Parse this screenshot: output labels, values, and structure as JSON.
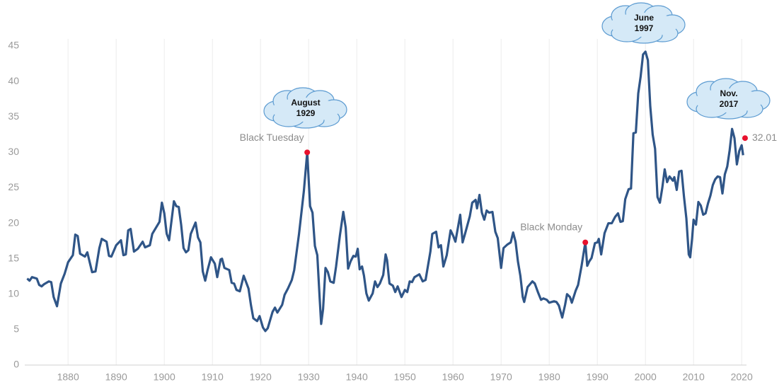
{
  "chart_data": {
    "type": "line",
    "color": "#2f5587",
    "x": [
      1871.5,
      1872,
      1872.5,
      1873.5,
      1874,
      1874.5,
      1875,
      1876,
      1876.5,
      1877,
      1877.7,
      1878.5,
      1879.3,
      1880,
      1881,
      1881.5,
      1882,
      1882.5,
      1883.5,
      1884,
      1885,
      1885.7,
      1886.5,
      1887,
      1888,
      1888.5,
      1889,
      1890,
      1891,
      1891.5,
      1892,
      1892.5,
      1893,
      1893.7,
      1894.5,
      1895.5,
      1896,
      1897,
      1897.5,
      1899,
      1899.5,
      1900,
      1900.5,
      1901,
      1902,
      1902.5,
      1903,
      1903.5,
      1904,
      1904.5,
      1905,
      1905.5,
      1906.5,
      1907,
      1907.5,
      1908,
      1908.5,
      1909,
      1909.7,
      1910.5,
      1911,
      1911.7,
      1912,
      1912.5,
      1913.5,
      1914,
      1914.5,
      1915,
      1915.7,
      1916.5,
      1917.5,
      1918,
      1918.5,
      1919.3,
      1919.8,
      1920.5,
      1921,
      1921.5,
      1922.5,
      1923,
      1923.5,
      1924.5,
      1925,
      1925.7,
      1926.5,
      1927,
      1928,
      1929,
      1929.7,
      1930.3,
      1930.8,
      1931.3,
      1931.8,
      1932.3,
      1932.6,
      1933,
      1933.5,
      1934,
      1934.5,
      1935.2,
      1935.7,
      1936.5,
      1937.2,
      1937.7,
      1938.2,
      1938.7,
      1939.3,
      1939.8,
      1940.2,
      1940.6,
      1941.1,
      1941.5,
      1942,
      1942.5,
      1943.3,
      1943.8,
      1944.3,
      1944.8,
      1945.5,
      1946,
      1946.3,
      1946.8,
      1947.5,
      1948,
      1948.5,
      1949.3,
      1950,
      1950.5,
      1951,
      1951.5,
      1952,
      1953,
      1953.7,
      1954.3,
      1955.3,
      1955.7,
      1956.5,
      1957,
      1957.5,
      1958,
      1958.7,
      1959.5,
      1960,
      1960.5,
      1961.5,
      1962,
      1962.5,
      1963.5,
      1964,
      1964.7,
      1965,
      1965.5,
      1966,
      1966.5,
      1967,
      1967.5,
      1968.2,
      1968.8,
      1969.3,
      1970,
      1970.5,
      1971.3,
      1972,
      1972.5,
      1973,
      1973.5,
      1974,
      1974.5,
      1974.8,
      1975.5,
      1976,
      1976.5,
      1977,
      1977.7,
      1978.3,
      1978.8,
      1979.5,
      1980,
      1981,
      1981.5,
      1982,
      1982.7,
      1983.3,
      1983.7,
      1984.3,
      1984.7,
      1985.5,
      1986,
      1986.7,
      1987.5,
      1987.9,
      1988.3,
      1988.8,
      1989.5,
      1990,
      1990.3,
      1990.8,
      1991.5,
      1992.3,
      1993,
      1993.7,
      1994.3,
      1994.8,
      1995.3,
      1995.8,
      1996.5,
      1997,
      1997.5,
      1998,
      1998.5,
      1999,
      1999.5,
      2000,
      2000.5,
      2001,
      2001.5,
      2002,
      2002.5,
      2003,
      2003.5,
      2004,
      2004.5,
      2005,
      2005.7,
      2006,
      2006.5,
      2007,
      2007.5,
      2008,
      2008.5,
      2009,
      2009.3,
      2009.7,
      2010,
      2010.5,
      2011,
      2011.5,
      2012,
      2012.5,
      2013,
      2013.5,
      2014,
      2014.5,
      2015,
      2015.5,
      2016,
      2016.5,
      2017,
      2017.5,
      2018,
      2018.5,
      2019,
      2019.5,
      2020,
      2020.3
    ],
    "values": [
      12.2,
      11.9,
      12.4,
      12.2,
      11.3,
      11.1,
      11.4,
      11.8,
      11.7,
      9.6,
      8.3,
      11.5,
      12.9,
      14.5,
      15.5,
      18.4,
      18.2,
      15.7,
      15.3,
      15.9,
      13.1,
      13.2,
      16.5,
      17.8,
      17.4,
      15.4,
      15.3,
      16.9,
      17.6,
      15.5,
      15.6,
      19.0,
      19.2,
      16.0,
      16.4,
      17.4,
      16.6,
      16.9,
      18.5,
      20.2,
      22.9,
      21.4,
      18.5,
      17.6,
      23.1,
      22.4,
      22.3,
      19.8,
      16.5,
      15.9,
      16.2,
      18.5,
      20.1,
      18.0,
      17.3,
      13.2,
      11.9,
      13.4,
      15.2,
      14.3,
      12.4,
      14.9,
      15.0,
      13.7,
      13.4,
      11.6,
      11.5,
      10.6,
      10.4,
      12.6,
      10.8,
      8.5,
      6.6,
      6.2,
      6.9,
      5.3,
      4.8,
      5.2,
      7.5,
      8.1,
      7.4,
      8.5,
      9.9,
      10.8,
      12.0,
      13.4,
      18.5,
      24.5,
      30.0,
      22.4,
      21.5,
      16.8,
      15.5,
      9.3,
      5.8,
      7.9,
      13.7,
      13.1,
      11.8,
      11.6,
      13.9,
      18.3,
      21.6,
      19.4,
      13.6,
      14.6,
      15.4,
      15.3,
      16.4,
      13.5,
      13.9,
      12.6,
      10.1,
      9.1,
      10.1,
      11.8,
      11.0,
      11.5,
      12.7,
      15.6,
      14.8,
      11.5,
      11.2,
      10.3,
      11.1,
      9.6,
      10.6,
      10.3,
      11.8,
      11.7,
      12.4,
      12.8,
      11.8,
      12.0,
      16.0,
      18.5,
      18.8,
      16.6,
      16.9,
      13.9,
      15.5,
      19.0,
      18.3,
      17.4,
      21.2,
      17.3,
      18.5,
      21.0,
      22.9,
      23.3,
      22.1,
      24.0,
      21.5,
      20.5,
      21.8,
      21.5,
      21.6,
      18.8,
      17.9,
      13.7,
      16.5,
      17.0,
      17.3,
      18.7,
      17.4,
      14.6,
      12.6,
      9.6,
      8.9,
      11.0,
      11.4,
      11.8,
      11.5,
      10.2,
      9.2,
      9.4,
      9.2,
      8.8,
      9.0,
      8.9,
      8.4,
      6.7,
      8.5,
      10.0,
      9.6,
      8.8,
      10.5,
      11.3,
      13.9,
      17.3,
      14.0,
      14.6,
      15.1,
      17.2,
      17.3,
      17.8,
      15.6,
      18.6,
      20.0,
      20.0,
      20.9,
      21.4,
      20.2,
      20.3,
      23.4,
      24.8,
      24.9,
      32.7,
      32.8,
      38.3,
      40.7,
      43.8,
      44.2,
      43.0,
      36.5,
      32.5,
      30.5,
      23.7,
      22.9,
      25.0,
      27.6,
      25.8,
      26.6,
      26.0,
      26.5,
      24.7,
      27.3,
      27.4,
      23.8,
      20.7,
      15.6,
      15.2,
      17.9,
      20.5,
      19.8,
      23.0,
      22.5,
      21.2,
      21.4,
      22.8,
      23.9,
      25.4,
      26.2,
      26.6,
      26.5,
      24.2,
      26.9,
      28.0,
      30.3,
      33.3,
      32.0,
      28.3,
      30.2,
      31.0,
      29.6
    ],
    "markers": [
      {
        "x": 1929.7,
        "value": 30.0,
        "label": "Black Tuesday",
        "color": "#e8112d"
      },
      {
        "x": 1987.5,
        "value": 17.3,
        "label": "Black Monday",
        "color": "#e8112d"
      },
      {
        "x": 2020.7,
        "value": 32.01,
        "color": "#e8112d"
      }
    ],
    "callouts": [
      [
        "August",
        "1929"
      ],
      [
        "June",
        "1997"
      ],
      [
        "Nov.",
        "2017"
      ]
    ],
    "xlim": [
      1871,
      2021
    ],
    "ylim": [
      0,
      45
    ],
    "xticks": [
      1880,
      1890,
      1900,
      1910,
      1920,
      1930,
      1940,
      1950,
      1960,
      1970,
      1980,
      1990,
      2000,
      2010,
      2020
    ],
    "yticks": [
      0,
      5,
      10,
      15,
      20,
      25,
      30,
      35,
      40,
      45
    ],
    "grid": true
  }
}
